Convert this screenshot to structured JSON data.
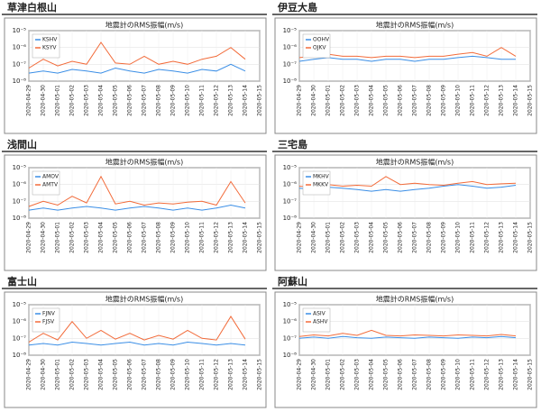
{
  "chart_data": [
    {
      "heading": "草津白根山",
      "type": "line",
      "title": "地震計のRMS振幅(m/s)",
      "log_scale": true,
      "grid": true,
      "legend": "upper left",
      "x": [
        "2020-04-29",
        "2020-04-30",
        "2020-05-01",
        "2020-05-02",
        "2020-05-03",
        "2020-05-04",
        "2020-05-05",
        "2020-05-06",
        "2020-05-07",
        "2020-05-08",
        "2020-05-09",
        "2020-05-10",
        "2020-05-11",
        "2020-05-12",
        "2020-05-13",
        "2020-05-14",
        "2020-05-15"
      ],
      "ylim": [
        1e-08,
        1e-05
      ],
      "yticks": [
        {
          "value": 1e-08,
          "label": "10⁻⁸"
        },
        {
          "value": 1e-07,
          "label": "10⁻⁷"
        },
        {
          "value": 1e-06,
          "label": "10⁻⁶"
        },
        {
          "value": 1e-05,
          "label": "10⁻⁵"
        }
      ],
      "series": [
        {
          "name": "KSHV",
          "color": "#3a8ee6",
          "values": [
            3e-08,
            4e-08,
            3e-08,
            5e-08,
            4e-08,
            3e-08,
            6e-08,
            4e-08,
            3e-08,
            5e-08,
            4e-08,
            3e-08,
            5e-08,
            4e-08,
            1e-07,
            4e-08,
            null
          ]
        },
        {
          "name": "KSYV",
          "color": "#f26b3a",
          "values": [
            6e-08,
            2e-07,
            8e-08,
            1.5e-07,
            1e-07,
            2e-06,
            1.2e-07,
            1e-07,
            3e-07,
            1e-07,
            1.5e-07,
            1e-07,
            2e-07,
            3e-07,
            1e-06,
            2e-07,
            null
          ]
        }
      ]
    },
    {
      "heading": "伊豆大島",
      "type": "line",
      "title": "地震計のRMS振幅(m/s)",
      "log_scale": true,
      "grid": true,
      "legend": "upper left",
      "x": [
        "2020-04-29",
        "2020-04-30",
        "2020-05-01",
        "2020-05-02",
        "2020-05-03",
        "2020-05-04",
        "2020-05-05",
        "2020-05-06",
        "2020-05-07",
        "2020-05-08",
        "2020-05-09",
        "2020-05-10",
        "2020-05-11",
        "2020-05-12",
        "2020-05-13",
        "2020-05-14",
        "2020-05-15"
      ],
      "ylim": [
        1e-08,
        1e-05
      ],
      "yticks": [
        {
          "value": 1e-08,
          "label": "10⁻⁸"
        },
        {
          "value": 1e-07,
          "label": "10⁻⁷"
        },
        {
          "value": 1e-06,
          "label": "10⁻⁶"
        },
        {
          "value": 1e-05,
          "label": "10⁻⁵"
        }
      ],
      "series": [
        {
          "name": "OOHV",
          "color": "#3a8ee6",
          "values": [
            1.5e-07,
            2e-07,
            2.5e-07,
            2e-07,
            2e-07,
            1.5e-07,
            2e-07,
            2e-07,
            1.5e-07,
            2e-07,
            2e-07,
            2.5e-07,
            3e-07,
            2.5e-07,
            2e-07,
            2e-07,
            null
          ]
        },
        {
          "name": "OJKV",
          "color": "#f26b3a",
          "values": [
            2.5e-07,
            3e-07,
            4e-07,
            3e-07,
            3e-07,
            2.5e-07,
            3e-07,
            3e-07,
            2.5e-07,
            3e-07,
            3e-07,
            4e-07,
            5e-07,
            3e-07,
            1e-06,
            3e-07,
            null
          ]
        }
      ]
    },
    {
      "heading": "浅間山",
      "type": "line",
      "title": "地震計のRMS振幅(m/s)",
      "log_scale": true,
      "grid": true,
      "legend": "upper left",
      "x": [
        "2020-04-29",
        "2020-04-30",
        "2020-05-01",
        "2020-05-02",
        "2020-05-03",
        "2020-05-04",
        "2020-05-05",
        "2020-05-06",
        "2020-05-07",
        "2020-05-08",
        "2020-05-09",
        "2020-05-10",
        "2020-05-11",
        "2020-05-12",
        "2020-05-13",
        "2020-05-14",
        "2020-05-15"
      ],
      "ylim": [
        1e-08,
        1e-05
      ],
      "yticks": [
        {
          "value": 1e-08,
          "label": "10⁻⁸"
        },
        {
          "value": 1e-07,
          "label": "10⁻⁷"
        },
        {
          "value": 1e-06,
          "label": "10⁻⁶"
        },
        {
          "value": 1e-05,
          "label": "10⁻⁵"
        }
      ],
      "series": [
        {
          "name": "AMOV",
          "color": "#3a8ee6",
          "values": [
            3e-08,
            4e-08,
            3e-08,
            4e-08,
            5e-08,
            4e-08,
            3e-08,
            4e-08,
            5e-08,
            4e-08,
            3e-08,
            4e-08,
            3e-08,
            4e-08,
            6e-08,
            4e-08,
            null
          ]
        },
        {
          "name": "AMTV",
          "color": "#f26b3a",
          "values": [
            5e-08,
            1e-07,
            6e-08,
            2e-07,
            8e-08,
            3e-06,
            7e-08,
            1e-07,
            6e-08,
            8e-08,
            7e-08,
            9e-08,
            1e-07,
            6e-08,
            1.5e-06,
            8e-08,
            null
          ]
        }
      ]
    },
    {
      "heading": "三宅島",
      "type": "line",
      "title": "地震計のRMS振幅(m/s)",
      "log_scale": true,
      "grid": true,
      "legend": "upper left",
      "x": [
        "2020-04-29",
        "2020-04-30",
        "2020-05-01",
        "2020-05-02",
        "2020-05-03",
        "2020-05-04",
        "2020-05-05",
        "2020-05-06",
        "2020-05-07",
        "2020-05-08",
        "2020-05-09",
        "2020-05-10",
        "2020-05-11",
        "2020-05-12",
        "2020-05-13",
        "2020-05-14",
        "2020-05-15"
      ],
      "ylim": [
        1e-08,
        1e-05
      ],
      "yticks": [
        {
          "value": 1e-08,
          "label": "10⁻⁸"
        },
        {
          "value": 1e-07,
          "label": "10⁻⁷"
        },
        {
          "value": 1e-06,
          "label": "10⁻⁶"
        },
        {
          "value": 1e-05,
          "label": "10⁻⁵"
        }
      ],
      "series": [
        {
          "name": "MKHV",
          "color": "#3a8ee6",
          "values": [
            6e-07,
            5e-07,
            7e-07,
            6e-07,
            5e-07,
            4e-07,
            5e-07,
            4e-07,
            5e-07,
            6e-07,
            8e-07,
            1e-06,
            8e-07,
            6e-07,
            7e-07,
            9e-07,
            null
          ]
        },
        {
          "name": "MKKV",
          "color": "#f26b3a",
          "values": [
            8e-07,
            7e-07,
            1e-06,
            8e-07,
            9e-07,
            8e-07,
            3e-06,
            1e-06,
            1.2e-06,
            1e-06,
            9e-07,
            1.2e-06,
            1.5e-06,
            1e-06,
            1.1e-06,
            1.2e-06,
            null
          ]
        }
      ]
    },
    {
      "heading": "富士山",
      "type": "line",
      "title": "地震計のRMS振幅(m/s)",
      "log_scale": true,
      "grid": true,
      "legend": "upper left",
      "x": [
        "2020-04-29",
        "2020-04-30",
        "2020-05-01",
        "2020-05-02",
        "2020-05-03",
        "2020-05-04",
        "2020-05-05",
        "2020-05-06",
        "2020-05-07",
        "2020-05-08",
        "2020-05-09",
        "2020-05-10",
        "2020-05-11",
        "2020-05-12",
        "2020-05-13",
        "2020-05-14",
        "2020-05-15"
      ],
      "ylim": [
        1e-08,
        1e-05
      ],
      "yticks": [
        {
          "value": 1e-08,
          "label": "10⁻⁸"
        },
        {
          "value": 1e-07,
          "label": "10⁻⁷"
        },
        {
          "value": 1e-06,
          "label": "10⁻⁶"
        },
        {
          "value": 1e-05,
          "label": "10⁻⁵"
        }
      ],
      "series": [
        {
          "name": "FJNV",
          "color": "#3a8ee6",
          "values": [
            4e-08,
            5e-08,
            4e-08,
            6e-08,
            5e-08,
            4e-08,
            5e-08,
            6e-08,
            4e-08,
            5e-08,
            4e-08,
            6e-08,
            5e-08,
            4e-08,
            5e-08,
            4e-08,
            null
          ]
        },
        {
          "name": "FJSV",
          "color": "#f26b3a",
          "values": [
            6e-08,
            2e-07,
            8e-08,
            1e-06,
            1e-07,
            3e-07,
            9e-08,
            2e-07,
            8e-08,
            1.5e-07,
            9e-08,
            3e-07,
            1e-07,
            8e-08,
            2e-06,
            9e-08,
            null
          ]
        }
      ]
    },
    {
      "heading": "阿蘇山",
      "type": "line",
      "title": "地震計のRMS振幅(m/s)",
      "log_scale": true,
      "grid": true,
      "legend": "upper left",
      "x": [
        "2020-04-29",
        "2020-04-30",
        "2020-05-01",
        "2020-05-02",
        "2020-05-03",
        "2020-05-04",
        "2020-05-05",
        "2020-05-06",
        "2020-05-07",
        "2020-05-08",
        "2020-05-09",
        "2020-05-10",
        "2020-05-11",
        "2020-05-12",
        "2020-05-13",
        "2020-05-14",
        "2020-05-15"
      ],
      "ylim": [
        1e-08,
        1e-05
      ],
      "yticks": [
        {
          "value": 1e-08,
          "label": "10⁻⁸"
        },
        {
          "value": 1e-07,
          "label": "10⁻⁷"
        },
        {
          "value": 1e-06,
          "label": "10⁻⁶"
        },
        {
          "value": 1e-05,
          "label": "10⁻⁵"
        }
      ],
      "series": [
        {
          "name": "ASIV",
          "color": "#3a8ee6",
          "values": [
            1e-07,
            1.2e-07,
            1e-07,
            1.3e-07,
            1.1e-07,
            1e-07,
            1.2e-07,
            1.1e-07,
            1e-07,
            1.2e-07,
            1.1e-07,
            1e-07,
            1.2e-07,
            1.1e-07,
            1.3e-07,
            1.1e-07,
            null
          ]
        },
        {
          "name": "ASHV",
          "color": "#f26b3a",
          "values": [
            1.3e-07,
            1.6e-07,
            1.4e-07,
            2e-07,
            1.5e-07,
            3e-07,
            1.5e-07,
            1.4e-07,
            1.6e-07,
            1.5e-07,
            1.4e-07,
            1.6e-07,
            1.5e-07,
            1.4e-07,
            1.7e-07,
            1.4e-07,
            null
          ]
        }
      ]
    }
  ]
}
